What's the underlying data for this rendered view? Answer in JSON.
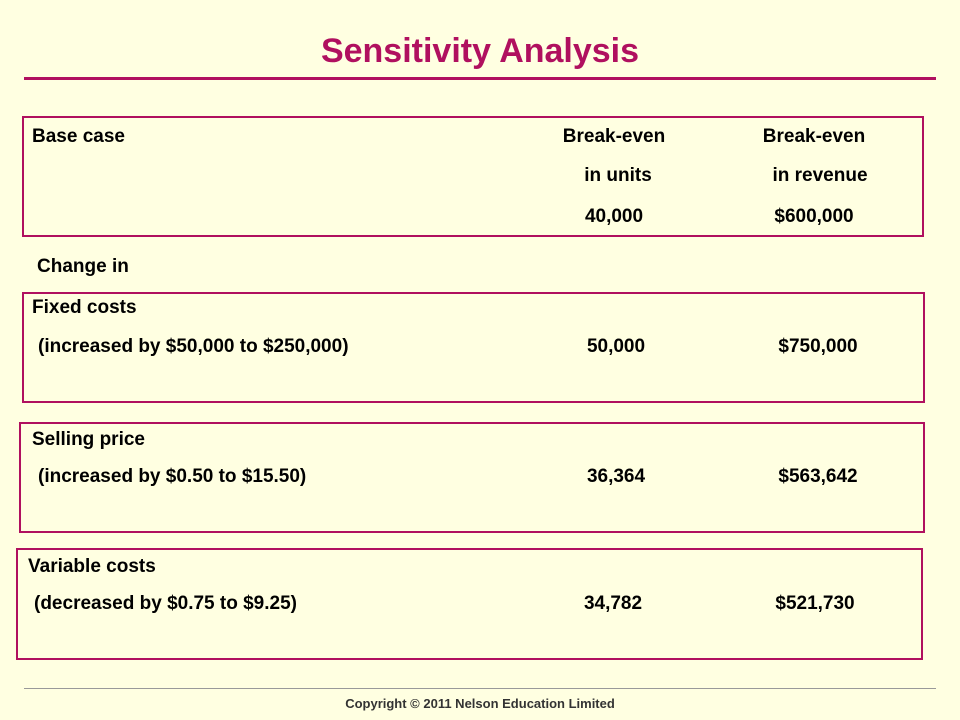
{
  "title": "Sensitivity Analysis",
  "base_case": {
    "label": "Base case",
    "col1_header_line1": "Break-even",
    "col1_header_line2": "in units",
    "col2_header_line1": "Break-even",
    "col2_header_line2": "in revenue",
    "units": "40,000",
    "revenue": "$600,000"
  },
  "change_in_label": "Change in",
  "scenarios": [
    {
      "name": "Fixed costs",
      "detail": "(increased by $50,000 to $250,000)",
      "units": "50,000",
      "revenue": "$750,000"
    },
    {
      "name": "Selling price",
      "detail": "(increased by $0.50 to $15.50)",
      "units": "36,364",
      "revenue": "$563,642"
    },
    {
      "name": "Variable costs",
      "detail": "(decreased by $0.75 to $9.25)",
      "units": "34,782",
      "revenue": "$521,730"
    }
  ],
  "footer": "Copyright © 2011 Nelson Education Limited",
  "colors": {
    "accent": "#B0105F",
    "background": "#FFFFE1"
  }
}
